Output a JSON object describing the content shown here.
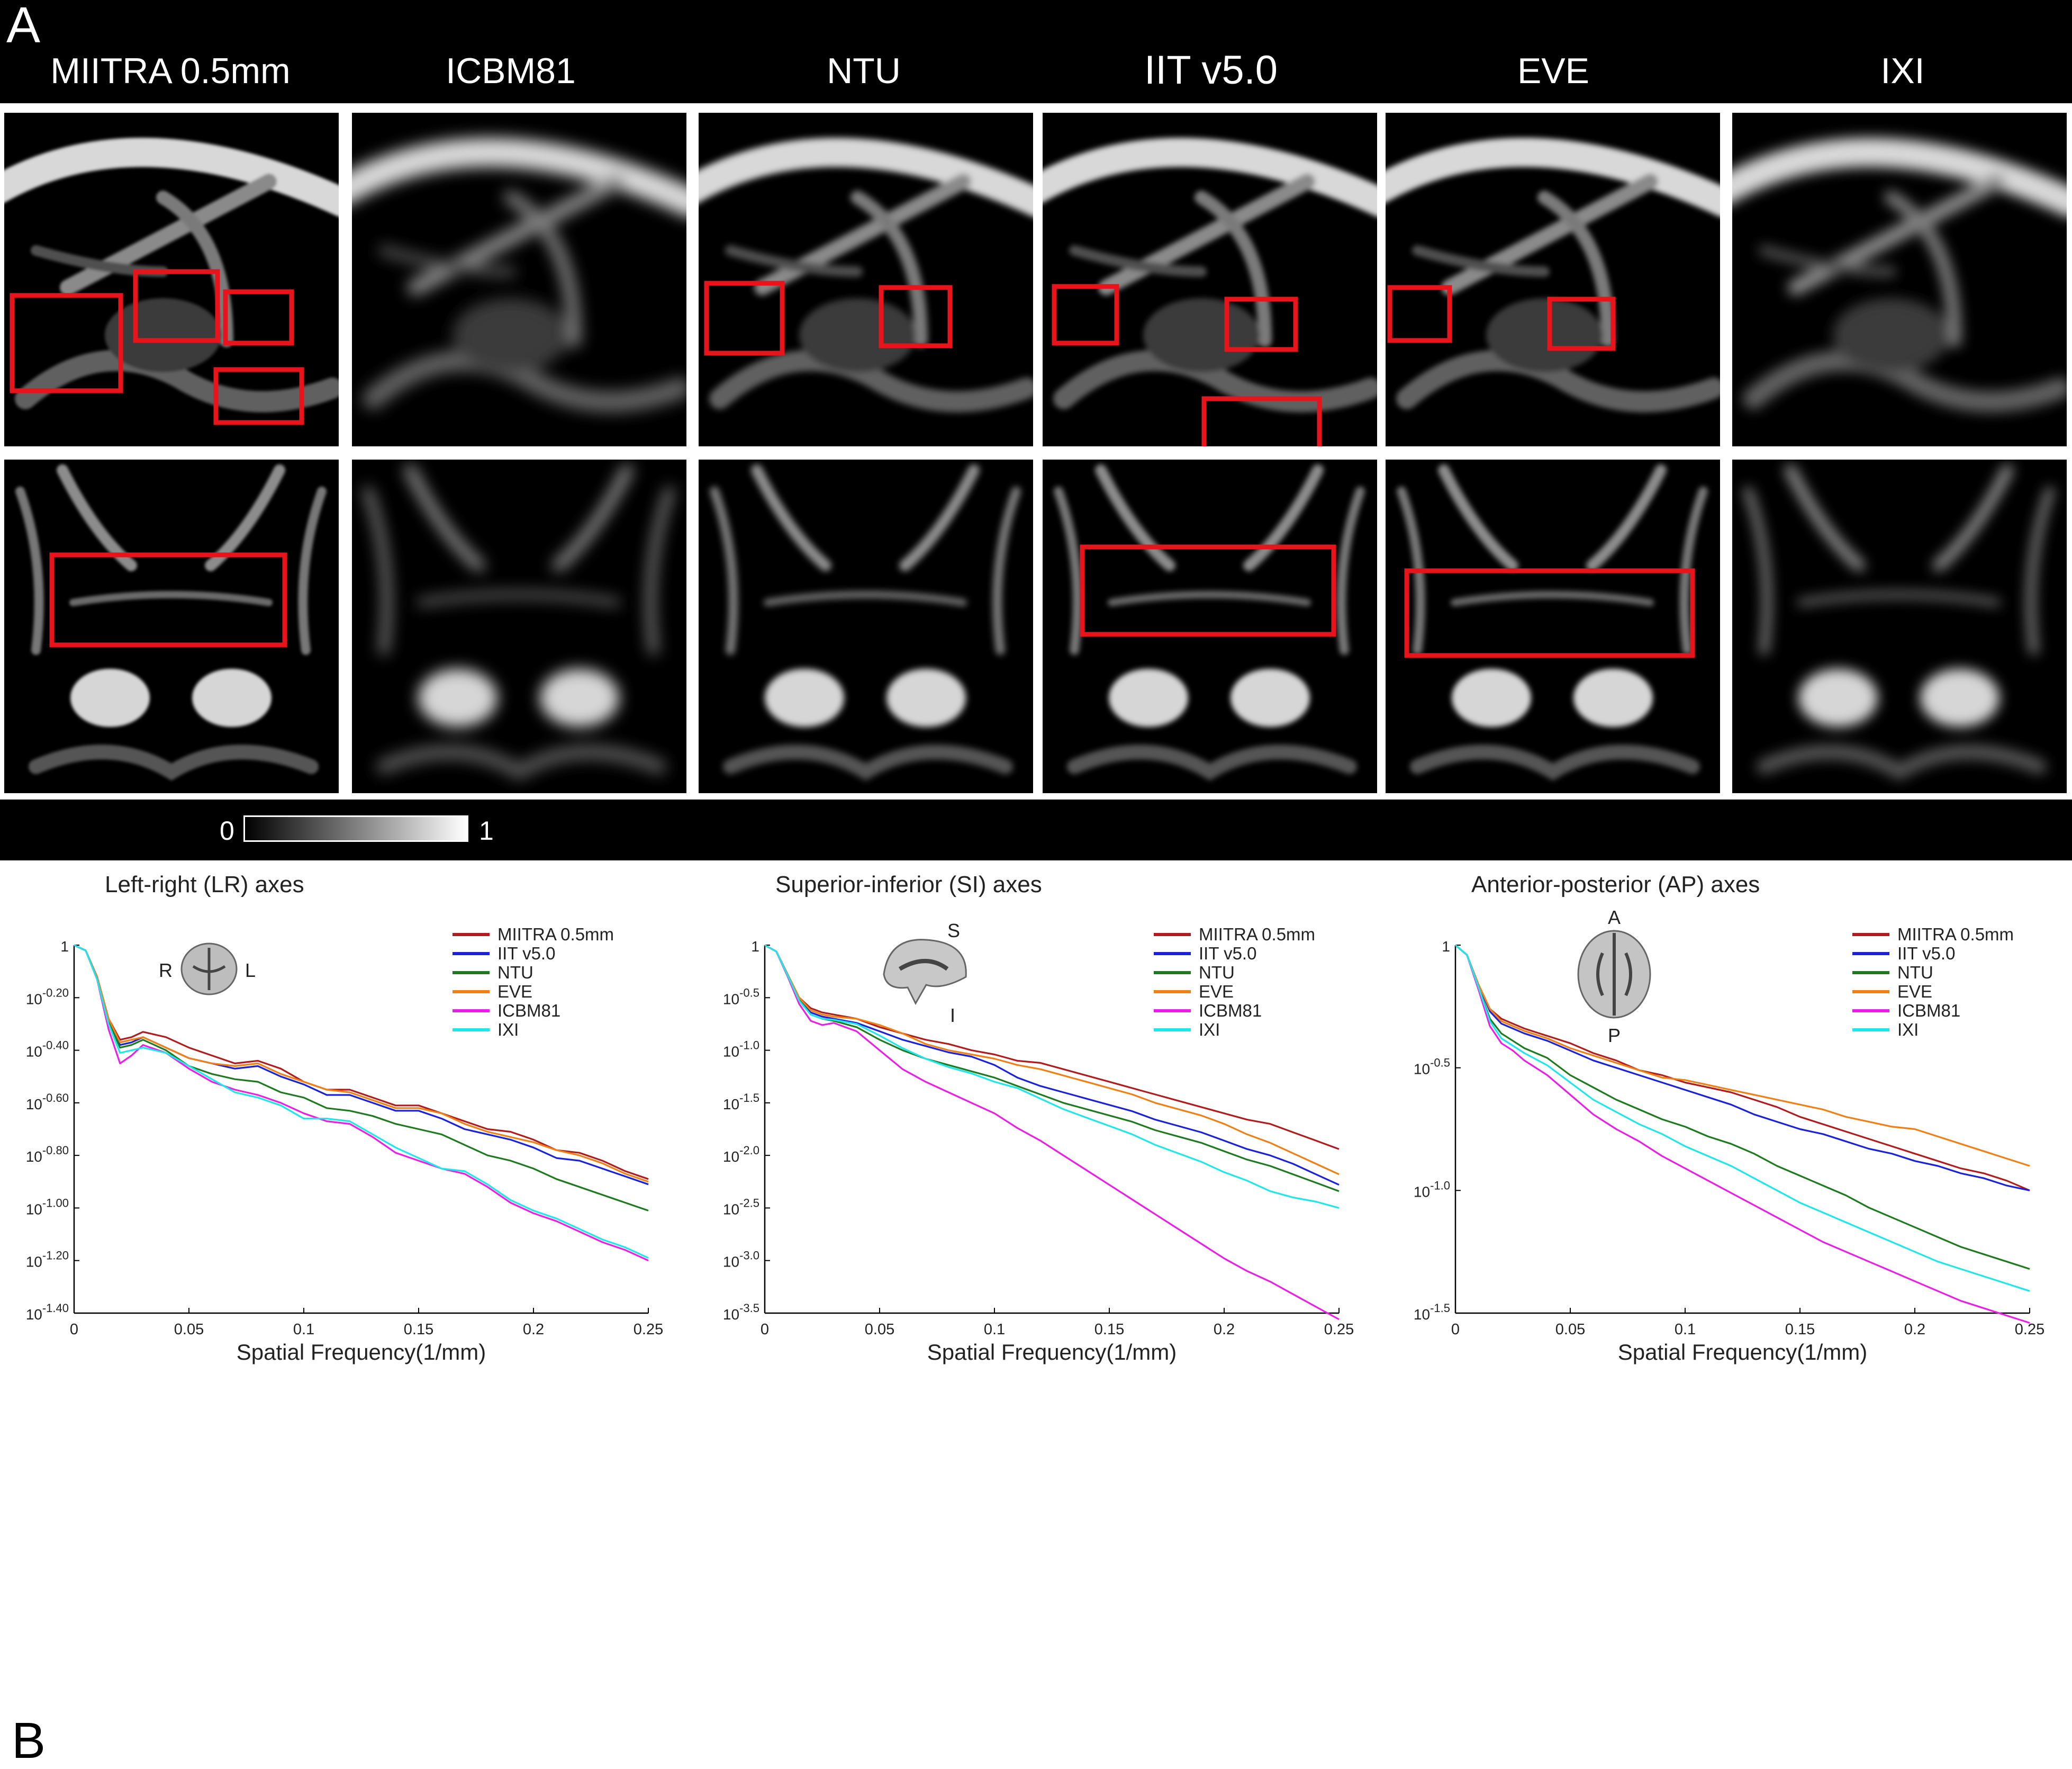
{
  "panelA": {
    "letter": "A",
    "columns": [
      "MIITRA 0.5mm",
      "ICBM81",
      "NTU",
      "IIT v5.0",
      "EVE",
      "IXI"
    ],
    "colorbar": {
      "min_label": "0",
      "max_label": "1"
    },
    "colors": {
      "highlight_box": "#e8141c"
    }
  },
  "panelB": {
    "letter": "B",
    "colors": {
      "MIITRA 0.5mm": "#b01c1c",
      "IIT v5.0": "#1a22d8",
      "NTU": "#1e7a1e",
      "EVE": "#f07f14",
      "ICBM81": "#ea1ee6",
      "IXI": "#1fe6ea"
    },
    "legend_order": [
      "MIITRA 0.5mm",
      "IIT v5.0",
      "NTU",
      "EVE",
      "ICBM81",
      "IXI"
    ]
  },
  "chart_data": [
    {
      "type": "line",
      "title": "Left-right (LR) axes",
      "xlabel": "Spatial Frequency(1/mm)",
      "ylabel": "",
      "icon_labels": [
        "R",
        "L"
      ],
      "xlim": [
        0,
        0.25
      ],
      "ylim": [
        -1.4,
        0
      ],
      "xticks": [
        0,
        0.05,
        0.1,
        0.15,
        0.2,
        0.25
      ],
      "xtick_labels": [
        "0",
        "0.05",
        "0.1",
        "0.15",
        "0.2",
        "0.25"
      ],
      "yticks": [
        0,
        -0.2,
        -0.4,
        -0.6,
        -0.8,
        -1.0,
        -1.2,
        -1.4
      ],
      "ytick_labels": [
        [
          "1",
          ""
        ],
        [
          "10",
          "-0.20"
        ],
        [
          "10",
          "-0.40"
        ],
        [
          "10",
          "-0.60"
        ],
        [
          "10",
          "-0.80"
        ],
        [
          "10",
          "-1.00"
        ],
        [
          "10",
          "-1.20"
        ],
        [
          "10",
          "-1.40"
        ]
      ],
      "x": [
        0,
        0.005,
        0.01,
        0.015,
        0.02,
        0.025,
        0.03,
        0.04,
        0.05,
        0.06,
        0.07,
        0.08,
        0.09,
        0.1,
        0.11,
        0.12,
        0.13,
        0.14,
        0.15,
        0.16,
        0.17,
        0.18,
        0.19,
        0.2,
        0.21,
        0.22,
        0.23,
        0.24,
        0.25
      ],
      "series": [
        {
          "name": "MIITRA 0.5mm",
          "values": [
            0,
            -0.02,
            -0.12,
            -0.28,
            -0.36,
            -0.35,
            -0.33,
            -0.35,
            -0.39,
            -0.42,
            -0.45,
            -0.44,
            -0.47,
            -0.52,
            -0.55,
            -0.55,
            -0.58,
            -0.61,
            -0.61,
            -0.64,
            -0.67,
            -0.7,
            -0.71,
            -0.74,
            -0.78,
            -0.79,
            -0.82,
            -0.86,
            -0.89
          ]
        },
        {
          "name": "IIT v5.0",
          "values": [
            0,
            -0.02,
            -0.12,
            -0.28,
            -0.38,
            -0.37,
            -0.35,
            -0.39,
            -0.43,
            -0.45,
            -0.47,
            -0.46,
            -0.5,
            -0.53,
            -0.57,
            -0.57,
            -0.6,
            -0.63,
            -0.63,
            -0.66,
            -0.7,
            -0.72,
            -0.74,
            -0.77,
            -0.81,
            -0.82,
            -0.85,
            -0.88,
            -0.91
          ]
        },
        {
          "name": "NTU",
          "values": [
            0,
            -0.02,
            -0.12,
            -0.29,
            -0.39,
            -0.38,
            -0.36,
            -0.4,
            -0.46,
            -0.49,
            -0.51,
            -0.52,
            -0.56,
            -0.58,
            -0.62,
            -0.63,
            -0.65,
            -0.68,
            -0.7,
            -0.72,
            -0.76,
            -0.8,
            -0.82,
            -0.85,
            -0.89,
            -0.92,
            -0.95,
            -0.98,
            -1.01
          ]
        },
        {
          "name": "EVE",
          "values": [
            0,
            -0.02,
            -0.12,
            -0.28,
            -0.37,
            -0.36,
            -0.35,
            -0.39,
            -0.43,
            -0.45,
            -0.46,
            -0.45,
            -0.49,
            -0.52,
            -0.55,
            -0.56,
            -0.59,
            -0.62,
            -0.62,
            -0.64,
            -0.68,
            -0.71,
            -0.73,
            -0.75,
            -0.78,
            -0.8,
            -0.83,
            -0.87,
            -0.9
          ]
        },
        {
          "name": "ICBM81",
          "values": [
            0,
            -0.02,
            -0.13,
            -0.32,
            -0.45,
            -0.42,
            -0.38,
            -0.41,
            -0.47,
            -0.52,
            -0.55,
            -0.57,
            -0.6,
            -0.64,
            -0.67,
            -0.68,
            -0.73,
            -0.79,
            -0.82,
            -0.85,
            -0.87,
            -0.92,
            -0.98,
            -1.02,
            -1.05,
            -1.09,
            -1.13,
            -1.16,
            -1.2
          ]
        },
        {
          "name": "IXI",
          "values": [
            0,
            -0.02,
            -0.13,
            -0.3,
            -0.41,
            -0.4,
            -0.39,
            -0.41,
            -0.46,
            -0.51,
            -0.56,
            -0.58,
            -0.61,
            -0.66,
            -0.66,
            -0.67,
            -0.72,
            -0.77,
            -0.81,
            -0.85,
            -0.86,
            -0.91,
            -0.97,
            -1.01,
            -1.04,
            -1.08,
            -1.12,
            -1.15,
            -1.19
          ]
        }
      ]
    },
    {
      "type": "line",
      "title": "Superior-inferior (SI) axes",
      "xlabel": "Spatial Frequency(1/mm)",
      "ylabel": "",
      "icon_labels": [
        "S",
        "I"
      ],
      "xlim": [
        0,
        0.25
      ],
      "ylim": [
        -3.5,
        0
      ],
      "xticks": [
        0,
        0.05,
        0.1,
        0.15,
        0.2,
        0.25
      ],
      "xtick_labels": [
        "0",
        "0.05",
        "0.1",
        "0.15",
        "0.2",
        "0.25"
      ],
      "yticks": [
        0,
        -0.5,
        -1.0,
        -1.5,
        -2.0,
        -2.5,
        -3.0,
        -3.5
      ],
      "ytick_labels": [
        [
          "1",
          ""
        ],
        [
          "10",
          "-0.5"
        ],
        [
          "10",
          "-1.0"
        ],
        [
          "10",
          "-1.5"
        ],
        [
          "10",
          "-2.0"
        ],
        [
          "10",
          "-2.5"
        ],
        [
          "10",
          "-3.0"
        ],
        [
          "10",
          "-3.5"
        ]
      ],
      "x": [
        0,
        0.005,
        0.01,
        0.015,
        0.02,
        0.025,
        0.03,
        0.04,
        0.05,
        0.06,
        0.07,
        0.08,
        0.09,
        0.1,
        0.11,
        0.12,
        0.13,
        0.14,
        0.15,
        0.16,
        0.17,
        0.18,
        0.19,
        0.2,
        0.21,
        0.22,
        0.23,
        0.24,
        0.25
      ],
      "series": [
        {
          "name": "MIITRA 0.5mm",
          "values": [
            0,
            -0.06,
            -0.28,
            -0.5,
            -0.6,
            -0.64,
            -0.66,
            -0.7,
            -0.78,
            -0.84,
            -0.9,
            -0.94,
            -1.0,
            -1.04,
            -1.1,
            -1.12,
            -1.18,
            -1.24,
            -1.3,
            -1.36,
            -1.42,
            -1.48,
            -1.54,
            -1.6,
            -1.66,
            -1.7,
            -1.78,
            -1.86,
            -1.94
          ]
        },
        {
          "name": "IIT v5.0",
          "values": [
            0,
            -0.06,
            -0.28,
            -0.52,
            -0.64,
            -0.68,
            -0.7,
            -0.74,
            -0.82,
            -0.9,
            -0.96,
            -1.02,
            -1.06,
            -1.14,
            -1.26,
            -1.34,
            -1.4,
            -1.46,
            -1.52,
            -1.58,
            -1.66,
            -1.72,
            -1.78,
            -1.86,
            -1.94,
            -2.0,
            -2.08,
            -2.18,
            -2.28
          ]
        },
        {
          "name": "NTU",
          "values": [
            0,
            -0.06,
            -0.28,
            -0.52,
            -0.66,
            -0.7,
            -0.72,
            -0.78,
            -0.9,
            -1.0,
            -1.08,
            -1.14,
            -1.2,
            -1.26,
            -1.34,
            -1.42,
            -1.5,
            -1.56,
            -1.62,
            -1.68,
            -1.76,
            -1.82,
            -1.88,
            -1.96,
            -2.04,
            -2.1,
            -2.18,
            -2.26,
            -2.34
          ]
        },
        {
          "name": "EVE",
          "values": [
            0,
            -0.06,
            -0.28,
            -0.5,
            -0.62,
            -0.66,
            -0.68,
            -0.7,
            -0.76,
            -0.84,
            -0.94,
            -1.0,
            -1.04,
            -1.08,
            -1.14,
            -1.18,
            -1.24,
            -1.3,
            -1.36,
            -1.42,
            -1.5,
            -1.56,
            -1.62,
            -1.7,
            -1.8,
            -1.88,
            -1.98,
            -2.08,
            -2.18
          ]
        },
        {
          "name": "ICBM81",
          "values": [
            0,
            -0.06,
            -0.3,
            -0.56,
            -0.72,
            -0.76,
            -0.74,
            -0.82,
            -1.0,
            -1.18,
            -1.3,
            -1.4,
            -1.5,
            -1.6,
            -1.74,
            -1.86,
            -2.0,
            -2.14,
            -2.28,
            -2.42,
            -2.56,
            -2.7,
            -2.84,
            -2.98,
            -3.1,
            -3.2,
            -3.32,
            -3.44,
            -3.56
          ]
        },
        {
          "name": "IXI",
          "values": [
            0,
            -0.06,
            -0.29,
            -0.53,
            -0.66,
            -0.7,
            -0.71,
            -0.75,
            -0.86,
            -0.98,
            -1.08,
            -1.16,
            -1.22,
            -1.3,
            -1.36,
            -1.46,
            -1.56,
            -1.64,
            -1.72,
            -1.8,
            -1.9,
            -1.98,
            -2.06,
            -2.16,
            -2.24,
            -2.34,
            -2.4,
            -2.44,
            -2.5
          ]
        }
      ]
    },
    {
      "type": "line",
      "title": "Anterior-posterior (AP) axes",
      "xlabel": "Spatial Frequency(1/mm)",
      "ylabel": "",
      "icon_labels": [
        "A",
        "P"
      ],
      "xlim": [
        0,
        0.25
      ],
      "ylim": [
        -1.5,
        0
      ],
      "xticks": [
        0,
        0.05,
        0.1,
        0.15,
        0.2,
        0.25
      ],
      "xtick_labels": [
        "0",
        "0.05",
        "0.1",
        "0.15",
        "0.2",
        "0.25"
      ],
      "yticks": [
        0,
        -0.5,
        -1.0,
        -1.5
      ],
      "ytick_labels": [
        [
          "1",
          ""
        ],
        [
          "10",
          "-0.5"
        ],
        [
          "10",
          "-1.0"
        ],
        [
          "10",
          "-1.5"
        ]
      ],
      "x": [
        0,
        0.005,
        0.01,
        0.015,
        0.02,
        0.025,
        0.03,
        0.04,
        0.05,
        0.06,
        0.07,
        0.08,
        0.09,
        0.1,
        0.11,
        0.12,
        0.13,
        0.14,
        0.15,
        0.16,
        0.17,
        0.18,
        0.19,
        0.2,
        0.21,
        0.22,
        0.23,
        0.24,
        0.25
      ],
      "series": [
        {
          "name": "MIITRA 0.5mm",
          "values": [
            0,
            -0.04,
            -0.16,
            -0.26,
            -0.3,
            -0.32,
            -0.34,
            -0.37,
            -0.4,
            -0.44,
            -0.47,
            -0.51,
            -0.53,
            -0.56,
            -0.58,
            -0.6,
            -0.63,
            -0.66,
            -0.7,
            -0.73,
            -0.76,
            -0.79,
            -0.82,
            -0.85,
            -0.88,
            -0.91,
            -0.93,
            -0.96,
            -1.0
          ]
        },
        {
          "name": "IIT v5.0",
          "values": [
            0,
            -0.04,
            -0.16,
            -0.27,
            -0.32,
            -0.34,
            -0.36,
            -0.39,
            -0.43,
            -0.47,
            -0.5,
            -0.53,
            -0.56,
            -0.59,
            -0.62,
            -0.65,
            -0.69,
            -0.72,
            -0.75,
            -0.77,
            -0.8,
            -0.83,
            -0.85,
            -0.88,
            -0.9,
            -0.93,
            -0.95,
            -0.98,
            -1.0
          ]
        },
        {
          "name": "NTU",
          "values": [
            0,
            -0.04,
            -0.17,
            -0.3,
            -0.36,
            -0.39,
            -0.42,
            -0.46,
            -0.53,
            -0.58,
            -0.63,
            -0.67,
            -0.71,
            -0.74,
            -0.78,
            -0.81,
            -0.85,
            -0.9,
            -0.94,
            -0.98,
            -1.02,
            -1.07,
            -1.11,
            -1.15,
            -1.19,
            -1.23,
            -1.26,
            -1.29,
            -1.32
          ]
        },
        {
          "name": "EVE",
          "values": [
            0,
            -0.04,
            -0.16,
            -0.26,
            -0.31,
            -0.33,
            -0.35,
            -0.38,
            -0.42,
            -0.45,
            -0.48,
            -0.51,
            -0.54,
            -0.55,
            -0.57,
            -0.59,
            -0.61,
            -0.63,
            -0.65,
            -0.67,
            -0.7,
            -0.72,
            -0.74,
            -0.75,
            -0.78,
            -0.81,
            -0.84,
            -0.87,
            -0.9
          ]
        },
        {
          "name": "ICBM81",
          "values": [
            0,
            -0.04,
            -0.18,
            -0.33,
            -0.4,
            -0.43,
            -0.47,
            -0.53,
            -0.61,
            -0.69,
            -0.75,
            -0.8,
            -0.86,
            -0.91,
            -0.96,
            -1.01,
            -1.06,
            -1.11,
            -1.16,
            -1.21,
            -1.25,
            -1.29,
            -1.33,
            -1.37,
            -1.41,
            -1.45,
            -1.48,
            -1.51,
            -1.54
          ]
        },
        {
          "name": "IXI",
          "values": [
            0,
            -0.04,
            -0.17,
            -0.31,
            -0.38,
            -0.41,
            -0.44,
            -0.49,
            -0.56,
            -0.63,
            -0.68,
            -0.73,
            -0.77,
            -0.82,
            -0.86,
            -0.9,
            -0.95,
            -1.0,
            -1.05,
            -1.09,
            -1.13,
            -1.17,
            -1.21,
            -1.25,
            -1.29,
            -1.32,
            -1.35,
            -1.38,
            -1.41
          ]
        }
      ]
    }
  ]
}
